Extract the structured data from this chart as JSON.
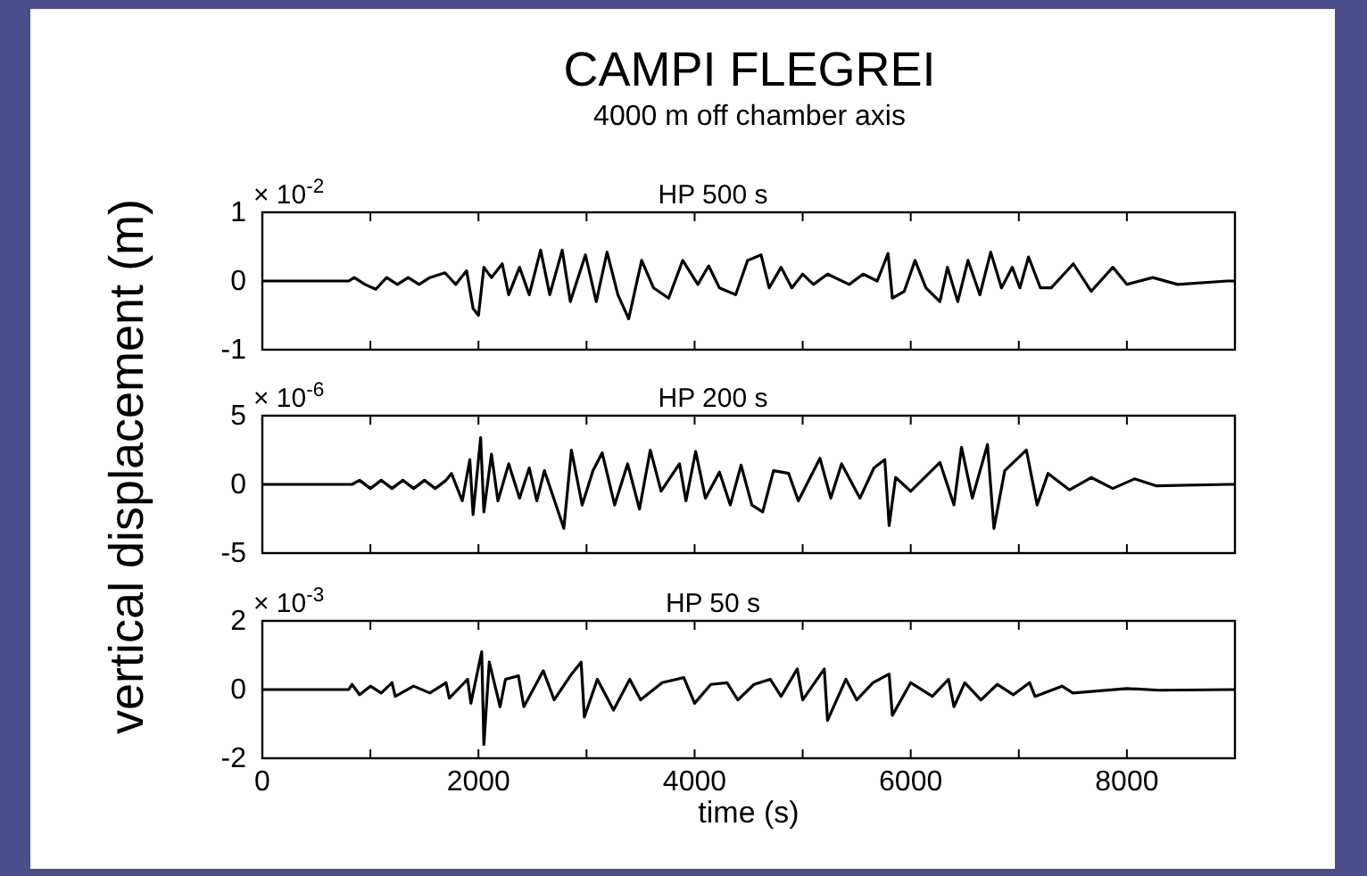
{
  "chart_data": [
    {
      "type": "line",
      "title": "CAMPI FLEGREI",
      "subtitle": "4000 m off chamber axis",
      "annotations": [
        "HP 500 s",
        "× 10$^{-2}$"
      ],
      "xlim": [
        0,
        9000
      ],
      "xticks": [
        0,
        1000,
        2000,
        3000,
        4000,
        5000,
        6000,
        7000,
        8000,
        9000
      ],
      "ylim": [
        -1,
        1
      ],
      "yticks": [
        -1,
        0,
        1
      ],
      "tick_labels": "y",
      "series": [
        {
          "color": "#000000",
          "x": [
            0,
            800,
            850,
            950,
            1050,
            1150,
            1250,
            1350,
            1450,
            1550,
            1690,
            1790,
            1890,
            1950,
            2000,
            2050,
            2120,
            2220,
            2280,
            2380,
            2470,
            2575,
            2660,
            2775,
            2850,
            2990,
            3090,
            3190,
            3290,
            3390,
            3510,
            3620,
            3760,
            3890,
            4030,
            4130,
            4230,
            4380,
            4490,
            4615,
            4690,
            4800,
            4900,
            5000,
            5100,
            5230,
            5430,
            5560,
            5690,
            5790,
            5830,
            5940,
            6040,
            6140,
            6270,
            6340,
            6435,
            6530,
            6640,
            6740,
            6840,
            6940,
            7010,
            7090,
            7200,
            7300,
            7505,
            7670,
            7870,
            8000,
            8240,
            8470,
            8930,
            9000
          ],
          "values": [
            0,
            0,
            0.05,
            -0.05,
            -0.12,
            0.05,
            -0.05,
            0.05,
            -0.05,
            0.05,
            0.12,
            -0.05,
            0.15,
            -0.4,
            -0.5,
            0.2,
            0.05,
            0.25,
            -0.2,
            0.2,
            -0.2,
            0.45,
            -0.2,
            0.45,
            -0.3,
            0.38,
            -0.3,
            0.42,
            -0.2,
            -0.55,
            0.3,
            -0.1,
            -0.25,
            0.3,
            -0.05,
            0.22,
            -0.1,
            -0.2,
            0.3,
            0.38,
            -0.1,
            0.2,
            -0.1,
            0.1,
            -0.05,
            0.1,
            -0.05,
            0.1,
            0,
            0.4,
            -0.25,
            -0.15,
            0.3,
            -0.1,
            -0.3,
            0.2,
            -0.3,
            0.3,
            -0.2,
            0.42,
            -0.1,
            0.2,
            -0.1,
            0.35,
            -0.1,
            -0.1,
            0.25,
            -0.15,
            0.2,
            -0.05,
            0.05,
            -0.05,
            0,
            0
          ]
        }
      ]
    },
    {
      "type": "line",
      "ylabel": "vertical displacement (m)",
      "annotations": [
        "HP 200 s",
        "× 10$^{-6}$"
      ],
      "xlim": [
        0,
        9000
      ],
      "xticks": [
        0,
        1000,
        2000,
        3000,
        4000,
        5000,
        6000,
        7000,
        8000,
        9000
      ],
      "ylim": [
        -5,
        5
      ],
      "yticks": [
        -5,
        0,
        5
      ],
      "tick_labels": "y",
      "series": [
        {
          "color": "#000000",
          "x": [
            0,
            830,
            900,
            1000,
            1100,
            1200,
            1300,
            1400,
            1500,
            1600,
            1700,
            1750,
            1850,
            1920,
            1950,
            2020,
            2050,
            2120,
            2180,
            2280,
            2380,
            2470,
            2540,
            2610,
            2790,
            2860,
            2960,
            3060,
            3145,
            3260,
            3380,
            3490,
            3590,
            3690,
            3860,
            3920,
            4010,
            4100,
            4230,
            4330,
            4430,
            4530,
            4630,
            4730,
            4870,
            4960,
            5160,
            5260,
            5360,
            5530,
            5660,
            5760,
            5800,
            5860,
            6000,
            6270,
            6400,
            6470,
            6570,
            6710,
            6770,
            6870,
            7070,
            7170,
            7270,
            7470,
            7670,
            7870,
            8070,
            8270,
            8930,
            9000
          ],
          "values": [
            0,
            0,
            0.3,
            -0.3,
            0.3,
            -0.3,
            0.3,
            -0.3,
            0.3,
            -0.3,
            0.3,
            0.8,
            -1.2,
            1.8,
            -2.2,
            3.4,
            -2,
            2.2,
            -1.2,
            1.5,
            -1,
            1.2,
            -1.2,
            1,
            -3.2,
            2.5,
            -1.5,
            1,
            2.3,
            -1.5,
            1.5,
            -1.8,
            2.5,
            -0.5,
            1.5,
            -1.2,
            2.4,
            -1,
            0.9,
            -1.5,
            1.4,
            -1.5,
            -2,
            1,
            0.8,
            -1.2,
            1.9,
            -1,
            1.5,
            -1,
            1.2,
            1.8,
            -3,
            0.5,
            -0.5,
            1.6,
            -1.5,
            2.7,
            -1,
            2.9,
            -3.2,
            1,
            2.5,
            -1.5,
            0.8,
            -0.4,
            0.5,
            -0.3,
            0.4,
            -0.1,
            0,
            0
          ]
        }
      ]
    },
    {
      "type": "line",
      "xlabel": "time (s)",
      "annotations": [
        "HP 50 s",
        "× 10$^{-3}$"
      ],
      "xlim": [
        0,
        9000
      ],
      "xticks": [
        0,
        {
          "value": 1000,
          "label": null
        },
        2000,
        {
          "value": 3000,
          "label": null
        },
        4000,
        {
          "value": 5000,
          "label": null
        },
        6000,
        {
          "value": 7000,
          "label": null
        },
        8000,
        {
          "value": 9000,
          "label": null
        }
      ],
      "ylim": [
        -2,
        2
      ],
      "yticks": [
        -2,
        0,
        2
      ],
      "series": [
        {
          "color": "#000000",
          "x": [
            0,
            800,
            830,
            900,
            1000,
            1100,
            1200,
            1230,
            1400,
            1550,
            1700,
            1730,
            1900,
            1930,
            2030,
            2050,
            2100,
            2200,
            2250,
            2370,
            2420,
            2600,
            2700,
            2850,
            2950,
            2980,
            3100,
            3250,
            3400,
            3500,
            3700,
            3900,
            4000,
            4150,
            4300,
            4400,
            4550,
            4700,
            4800,
            4950,
            5000,
            5200,
            5230,
            5400,
            5500,
            5650,
            5800,
            5830,
            6000,
            6200,
            6350,
            6400,
            6500,
            6650,
            6800,
            6950,
            7100,
            7150,
            7400,
            7500,
            8000,
            8300,
            9000
          ],
          "values": [
            0,
            0,
            0.15,
            -0.15,
            0.1,
            -0.1,
            0.2,
            -0.2,
            0.1,
            -0.1,
            0.2,
            -0.25,
            0.3,
            -0.4,
            1.1,
            -1.6,
            0.8,
            -0.5,
            0.3,
            0.4,
            -0.5,
            0.55,
            -0.3,
            0.4,
            0.8,
            -0.8,
            0.3,
            -0.6,
            0.3,
            -0.3,
            0.2,
            0.35,
            -0.4,
            0.15,
            0.2,
            -0.3,
            0.15,
            0.3,
            -0.2,
            0.6,
            -0.3,
            0.6,
            -0.9,
            0.3,
            -0.3,
            0.2,
            0.45,
            -0.75,
            0.2,
            -0.2,
            0.3,
            -0.5,
            0.2,
            -0.3,
            0.15,
            -0.15,
            0.2,
            -0.2,
            0.1,
            -0.1,
            0.03,
            -0.02,
            0
          ]
        }
      ]
    }
  ]
}
